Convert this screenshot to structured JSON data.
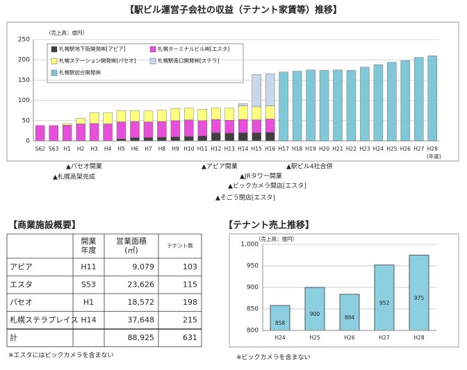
{
  "chart_data": [
    {
      "type": "stacked-bar",
      "title": "【駅ビル運営子会社の収益（テナント家賃等）推移】",
      "y_label": "（売上高：億円）",
      "x_label": "(年度)",
      "categories": [
        "S62",
        "S63",
        "H1",
        "H2",
        "H3",
        "H4",
        "H5",
        "H6",
        "H7",
        "H8",
        "H9",
        "H10",
        "H11",
        "H12",
        "H13",
        "H14",
        "H15",
        "H16",
        "H17",
        "H18",
        "H19",
        "H20",
        "H21",
        "H22",
        "H23",
        "H24",
        "H25",
        "H26",
        "H27",
        "H28"
      ],
      "ylim": [
        0,
        250
      ],
      "yticks": [
        0,
        50,
        100,
        150,
        200,
        250
      ],
      "grid": true,
      "series": [
        {
          "name": "札幌駅地下街開発㈱[アピア]",
          "color": "#404040",
          "values": [
            null,
            null,
            null,
            null,
            null,
            null,
            5,
            8,
            8,
            9,
            10,
            11,
            12,
            20,
            19,
            20,
            20,
            21,
            null,
            null,
            null,
            null,
            null,
            null,
            null,
            null,
            null,
            null,
            null,
            null
          ]
        },
        {
          "name": "札幌ターミナルビル㈱[エスタ]",
          "color": "#e650d8",
          "values": [
            38,
            38,
            39,
            42,
            43,
            42,
            42,
            40,
            39,
            39,
            40,
            41,
            38,
            33,
            32,
            33,
            32,
            33,
            null,
            null,
            null,
            null,
            null,
            null,
            null,
            null,
            null,
            null,
            null,
            null
          ]
        },
        {
          "name": "札幌ステーション開発㈱[パセオ]",
          "color": "#ffff80",
          "values": [
            null,
            null,
            4,
            14,
            27,
            28,
            28,
            27,
            27,
            28,
            30,
            29,
            28,
            29,
            30,
            33,
            32,
            32,
            null,
            null,
            null,
            null,
            null,
            null,
            null,
            null,
            null,
            null,
            null,
            null
          ]
        },
        {
          "name": "札幌駅南口開発㈱[ステラ]",
          "color": "#c8d8ea",
          "values": [
            null,
            null,
            null,
            null,
            null,
            null,
            null,
            null,
            null,
            null,
            null,
            null,
            null,
            null,
            null,
            6,
            80,
            80,
            null,
            null,
            null,
            null,
            null,
            null,
            null,
            null,
            null,
            null,
            null,
            null
          ]
        },
        {
          "name": "札幌駅総合開発㈱",
          "color": "#80c8d8",
          "values": [
            null,
            null,
            null,
            null,
            null,
            null,
            null,
            null,
            null,
            null,
            null,
            null,
            null,
            null,
            null,
            null,
            null,
            null,
            170,
            172,
            175,
            174,
            175,
            174,
            182,
            188,
            194,
            198,
            206,
            210
          ]
        }
      ],
      "annotations": [
        "▲パセオ開業",
        "▲札幌高架完成",
        "▲アピア開業",
        "▲JRタワー開業",
        "▲ビックカメラ開店[エスタ]",
        "▲そごう閉店[エスタ]",
        "▲駅ビル4社合併"
      ]
    },
    {
      "type": "bar",
      "title": "【テナント売上推移】",
      "y_label": "（売上高：億円）",
      "categories": [
        "H24",
        "H25",
        "H26",
        "H27",
        "H28"
      ],
      "values": [
        858,
        900,
        884,
        952,
        975
      ],
      "color": "#8ccfe0",
      "ylim": [
        800,
        1000
      ],
      "yticks": [
        800,
        850,
        900,
        950,
        {
          "value": 1000,
          "label": "1,000"
        }
      ],
      "grid": true,
      "note": "※ビックカメラを含まない"
    }
  ],
  "table": {
    "title": "【商業施設概要】",
    "header": [
      [
        "開業",
        "年度"
      ],
      [
        "営業面積",
        "(㎡)"
      ],
      [
        "テナント数"
      ]
    ],
    "rows": [
      [
        "アピア",
        "H11",
        "9,079",
        "103"
      ],
      [
        "エスタ",
        "S53",
        "23,626",
        "115"
      ],
      [
        "パセオ",
        "H1",
        "18,572",
        "198"
      ],
      [
        "札幌ステラプレイス",
        "H14",
        "37,648",
        "215"
      ],
      [
        "計",
        null,
        "88,925",
        "631"
      ]
    ],
    "note": "※エスタにはビックカメラを含まない"
  }
}
